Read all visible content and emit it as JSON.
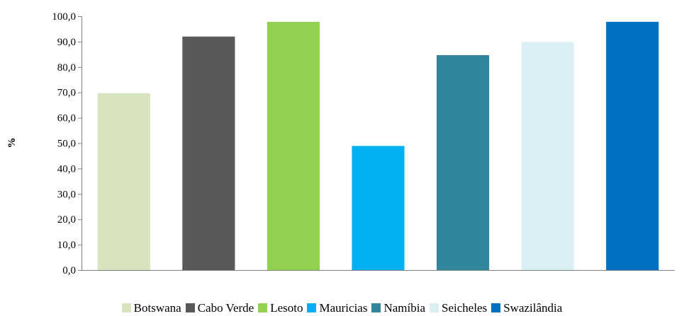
{
  "chart_data": {
    "type": "bar",
    "title": "",
    "xlabel": "",
    "ylabel": "%",
    "ylim": [
      0,
      100
    ],
    "ytick_step": 10,
    "ytick_labels": [
      "0,0",
      "10,0",
      "20,0",
      "30,0",
      "40,0",
      "50,0",
      "60,0",
      "70,0",
      "80,0",
      "90,0",
      "100,0"
    ],
    "grid": false,
    "legend_position": "bottom",
    "categories": [
      "Botswana",
      "Cabo Verde",
      "Lesoto",
      "Mauricias",
      "Namíbia",
      "Seicheles",
      "Swazilândia"
    ],
    "values": [
      69.7,
      92.0,
      97.8,
      48.9,
      84.7,
      89.8,
      97.8
    ],
    "colors": [
      "#d7e4bd",
      "#595959",
      "#92d050",
      "#00b0f0",
      "#31869b",
      "#daeef3",
      "#0070c0"
    ]
  }
}
